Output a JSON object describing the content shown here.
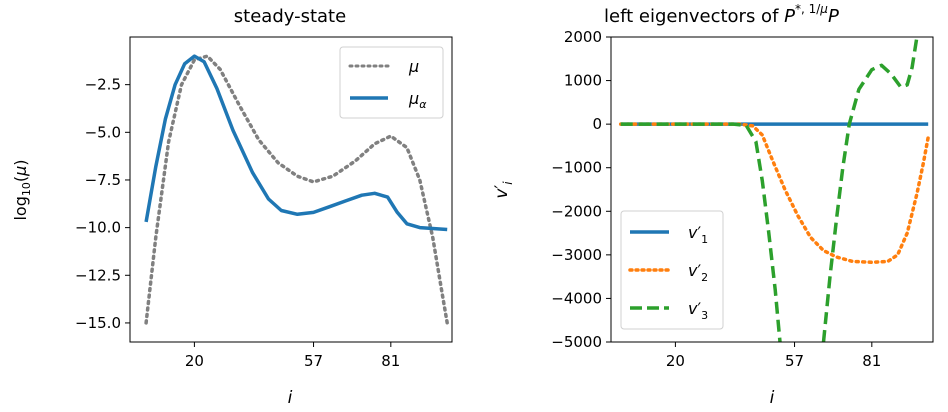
{
  "chart_data": [
    {
      "type": "line",
      "title": "steady-state",
      "xlabel": "i",
      "ylabel": "log10(μ)",
      "xlim": [
        0,
        100
      ],
      "ylim": [
        -16,
        0
      ],
      "xticks": [
        20,
        57,
        81
      ],
      "xtick_labels": [
        "20",
        "57",
        "81"
      ],
      "yticks": [
        -2.5,
        -5.0,
        -7.5,
        -10.0,
        -12.5,
        -15.0
      ],
      "ytick_labels": [
        "−2.5",
        "−5.0",
        "−7.5",
        "−10.0",
        "−12.5",
        "−15.0"
      ],
      "grid": false,
      "legend_position": "top-right",
      "series": [
        {
          "name": "μ",
          "color": "#808080",
          "style": "dotted",
          "points": [
            [
              5,
              -15.0
            ],
            [
              8,
              -10.5
            ],
            [
              12,
              -5.5
            ],
            [
              16,
              -2.5
            ],
            [
              20,
              -1.2
            ],
            [
              24,
              -1.0
            ],
            [
              28,
              -1.7
            ],
            [
              34,
              -3.6
            ],
            [
              40,
              -5.4
            ],
            [
              46,
              -6.6
            ],
            [
              52,
              -7.3
            ],
            [
              57,
              -7.6
            ],
            [
              63,
              -7.3
            ],
            [
              70,
              -6.5
            ],
            [
              76,
              -5.6
            ],
            [
              81,
              -5.2
            ],
            [
              86,
              -5.8
            ],
            [
              90,
              -7.5
            ],
            [
              94,
              -10.5
            ],
            [
              97,
              -13.5
            ],
            [
              98.5,
              -15.0
            ]
          ]
        },
        {
          "name": "μ_α",
          "color": "#1f77b4",
          "style": "solid",
          "points": [
            [
              5,
              -9.7
            ],
            [
              8,
              -6.8
            ],
            [
              11,
              -4.3
            ],
            [
              14,
              -2.5
            ],
            [
              17,
              -1.4
            ],
            [
              20,
              -1.0
            ],
            [
              23,
              -1.3
            ],
            [
              27,
              -2.7
            ],
            [
              32,
              -4.9
            ],
            [
              38,
              -7.1
            ],
            [
              43,
              -8.5
            ],
            [
              47,
              -9.1
            ],
            [
              52,
              -9.3
            ],
            [
              57,
              -9.2
            ],
            [
              62,
              -8.9
            ],
            [
              67,
              -8.6
            ],
            [
              72,
              -8.3
            ],
            [
              76,
              -8.2
            ],
            [
              80,
              -8.4
            ],
            [
              83,
              -9.2
            ],
            [
              86,
              -9.8
            ],
            [
              90,
              -10.0
            ],
            [
              98.5,
              -10.1
            ]
          ]
        }
      ]
    },
    {
      "type": "line",
      "title": "left eigenvectors of P*,1/μP",
      "title_parts": {
        "base": "left eigenvectors of ",
        "P": "P",
        "sup": "*, 1/μ",
        "tail": "P"
      },
      "xlabel": "i",
      "ylabel": "v′i",
      "xlim": [
        0,
        100
      ],
      "ylim": [
        -5000,
        2000
      ],
      "xticks": [
        20,
        57,
        81
      ],
      "xtick_labels": [
        "20",
        "57",
        "81"
      ],
      "yticks": [
        2000,
        1000,
        0,
        -1000,
        -2000,
        -3000,
        -4000,
        -5000
      ],
      "ytick_labels": [
        "2000",
        "1000",
        "0",
        "−1000",
        "−2000",
        "−3000",
        "−4000",
        "−5000"
      ],
      "grid": false,
      "legend_position": "bottom-left",
      "series": [
        {
          "name": "v′1",
          "color": "#1f77b4",
          "style": "solid",
          "points": [
            [
              3,
              0
            ],
            [
              98.5,
              0
            ]
          ]
        },
        {
          "name": "v′2",
          "color": "#ff7f0e",
          "style": "dotted",
          "points": [
            [
              3,
              0
            ],
            [
              40,
              0
            ],
            [
              44,
              -40
            ],
            [
              47,
              -250
            ],
            [
              50,
              -800
            ],
            [
              54,
              -1500
            ],
            [
              58,
              -2100
            ],
            [
              62,
              -2600
            ],
            [
              66,
              -2900
            ],
            [
              70,
              -3050
            ],
            [
              75,
              -3150
            ],
            [
              81,
              -3170
            ],
            [
              86,
              -3150
            ],
            [
              89,
              -3000
            ],
            [
              92,
              -2500
            ],
            [
              95,
              -1600
            ],
            [
              97,
              -900
            ],
            [
              98.5,
              -300
            ]
          ]
        },
        {
          "name": "v′3",
          "color": "#2ca02c",
          "style": "dashed",
          "points": [
            [
              3,
              0
            ],
            [
              38,
              0
            ],
            [
              42,
              -30
            ],
            [
              45,
              -400
            ],
            [
              47,
              -1300
            ],
            [
              49,
              -2500
            ],
            [
              51,
              -3800
            ],
            [
              52.5,
              -5000
            ]
          ],
          "points_b": [
            [
              66,
              -5000
            ],
            [
              68,
              -3500
            ],
            [
              70,
              -2200
            ],
            [
              72,
              -1000
            ],
            [
              74,
              0
            ],
            [
              77,
              800
            ],
            [
              81,
              1250
            ],
            [
              84,
              1350
            ],
            [
              87,
              1150
            ],
            [
              90,
              850
            ],
            [
              92,
              900
            ],
            [
              93.5,
              1300
            ],
            [
              95,
              2000
            ]
          ]
        }
      ]
    }
  ]
}
